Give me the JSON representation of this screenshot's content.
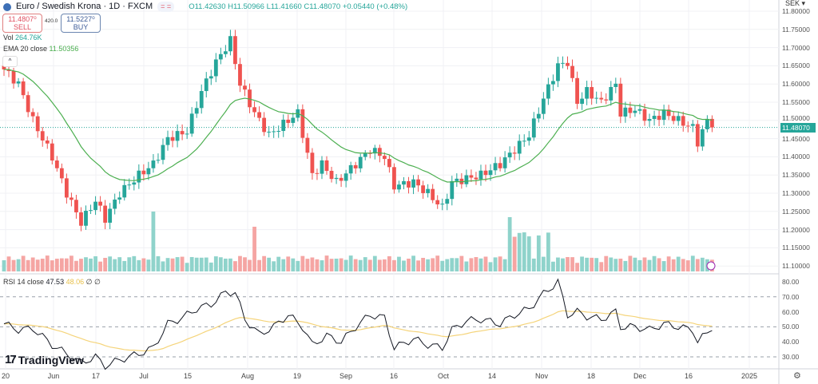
{
  "header": {
    "symbol": "Euro / Swedish Krona · 1D · FXCM",
    "open": "O11.42630",
    "high": "H11.50966",
    "low": "L11.41660",
    "close": "C11.48070",
    "change": "+0.05440 (+0.48%)",
    "pill": "= ="
  },
  "trade": {
    "sell_price": "11.4807⁰",
    "sell_label": "SELL",
    "spread": "420.0",
    "buy_price": "11.5227⁰",
    "buy_label": "BUY"
  },
  "indicators": {
    "vol_label": "Vol",
    "vol_value": "264.76K",
    "ema_label": "EMA 20 close",
    "ema_value": "11.50356",
    "rsi_label": "RSI 14 close",
    "rsi_value": "47.53",
    "rsi_ma_value": "48.06",
    "rsi_extra": "∅ ∅"
  },
  "axis": {
    "currency": "SEK",
    "price_ticks": [
      "11.80000",
      "11.75000",
      "11.70000",
      "11.65000",
      "11.60000",
      "11.55000",
      "11.50000",
      "11.45000",
      "11.40000",
      "11.35000",
      "11.30000",
      "11.25000",
      "11.20000",
      "11.15000",
      "11.10000"
    ],
    "current_price": "11.48070",
    "rsi_ticks": [
      "80.00",
      "70.00",
      "60.00",
      "50.00",
      "40.00",
      "30.00"
    ],
    "time_labels": [
      "20",
      "Jun",
      "17",
      "Jul",
      "15",
      "Aug",
      "19",
      "Sep",
      "16",
      "Oct",
      "14",
      "Nov",
      "18",
      "Dec",
      "16",
      "2025"
    ]
  },
  "branding": {
    "name": "TradingView"
  },
  "colors": {
    "up": "#26a69a",
    "down": "#ef5350",
    "ema": "#4caf50",
    "rsi": "#131722",
    "rsi_ma": "#f5d47a"
  },
  "chart_data": {
    "type": "candlestick",
    "price_range": [
      11.1,
      11.8
    ],
    "close_keypoints": [
      [
        0,
        11.64
      ],
      [
        3,
        11.6
      ],
      [
        6,
        11.5
      ],
      [
        10,
        11.4
      ],
      [
        13,
        11.3
      ],
      [
        16,
        11.22
      ],
      [
        19,
        11.28
      ],
      [
        21,
        11.23
      ],
      [
        24,
        11.3
      ],
      [
        28,
        11.35
      ],
      [
        31,
        11.38
      ],
      [
        34,
        11.45
      ],
      [
        38,
        11.47
      ],
      [
        41,
        11.58
      ],
      [
        44,
        11.66
      ],
      [
        47,
        11.72
      ],
      [
        49,
        11.6
      ],
      [
        52,
        11.52
      ],
      [
        55,
        11.46
      ],
      [
        57,
        11.48
      ],
      [
        61,
        11.52
      ],
      [
        64,
        11.35
      ],
      [
        66,
        11.38
      ],
      [
        69,
        11.33
      ],
      [
        73,
        11.38
      ],
      [
        76,
        11.42
      ],
      [
        79,
        11.4
      ],
      [
        81,
        11.32
      ],
      [
        85,
        11.33
      ],
      [
        88,
        11.3
      ],
      [
        91,
        11.26
      ],
      [
        93,
        11.33
      ],
      [
        96,
        11.34
      ],
      [
        99,
        11.35
      ],
      [
        103,
        11.38
      ],
      [
        106,
        11.42
      ],
      [
        109,
        11.46
      ],
      [
        112,
        11.56
      ],
      [
        115,
        11.65
      ],
      [
        117,
        11.66
      ],
      [
        119,
        11.55
      ],
      [
        121,
        11.58
      ],
      [
        124,
        11.55
      ],
      [
        127,
        11.6
      ],
      [
        128,
        11.52
      ],
      [
        131,
        11.53
      ],
      [
        134,
        11.5
      ],
      [
        137,
        11.52
      ],
      [
        140,
        11.5
      ],
      [
        143,
        11.48
      ],
      [
        144,
        11.44
      ],
      [
        146,
        11.5
      ],
      [
        147,
        11.4807
      ]
    ],
    "rsi_range": [
      20,
      85
    ],
    "rsi_levels": [
      70,
      50,
      30
    ],
    "rsi_keypoints": [
      [
        0,
        52
      ],
      [
        3,
        48
      ],
      [
        6,
        49
      ],
      [
        10,
        38
      ],
      [
        13,
        32
      ],
      [
        16,
        26
      ],
      [
        19,
        30
      ],
      [
        21,
        24
      ],
      [
        24,
        28
      ],
      [
        28,
        32
      ],
      [
        31,
        36
      ],
      [
        34,
        52
      ],
      [
        37,
        56
      ],
      [
        40,
        62
      ],
      [
        43,
        65
      ],
      [
        46,
        73
      ],
      [
        48,
        73
      ],
      [
        50,
        55
      ],
      [
        53,
        45
      ],
      [
        56,
        50
      ],
      [
        59,
        58
      ],
      [
        62,
        50
      ],
      [
        64,
        38
      ],
      [
        67,
        44
      ],
      [
        70,
        40
      ],
      [
        73,
        50
      ],
      [
        76,
        58
      ],
      [
        79,
        56
      ],
      [
        81,
        36
      ],
      [
        85,
        42
      ],
      [
        88,
        38
      ],
      [
        91,
        36
      ],
      [
        93,
        48
      ],
      [
        96,
        54
      ],
      [
        99,
        55
      ],
      [
        103,
        52
      ],
      [
        106,
        58
      ],
      [
        109,
        62
      ],
      [
        112,
        72
      ],
      [
        115,
        80
      ],
      [
        117,
        58
      ],
      [
        119,
        60
      ],
      [
        121,
        57
      ],
      [
        124,
        55
      ],
      [
        127,
        60
      ],
      [
        128,
        50
      ],
      [
        131,
        50
      ],
      [
        134,
        48
      ],
      [
        137,
        52
      ],
      [
        140,
        50
      ],
      [
        143,
        48
      ],
      [
        144,
        40
      ],
      [
        146,
        46
      ],
      [
        147,
        47.53
      ]
    ]
  }
}
